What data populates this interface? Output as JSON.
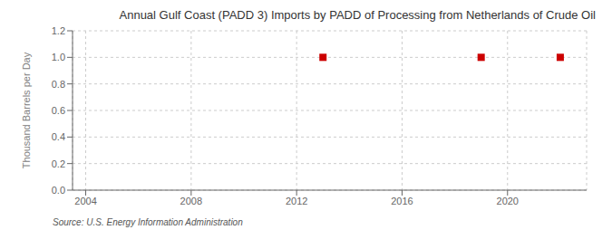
{
  "chart_data": {
    "type": "scatter",
    "title": "Annual Gulf Coast (PADD 3) Imports by PADD of Processing from Netherlands of Crude Oil",
    "y_label": "Thousand Barrels per Day",
    "source": "Source: U.S. Energy Information Administration",
    "x": [
      2013,
      2019,
      2022
    ],
    "values": [
      1.0,
      1.0,
      1.0
    ],
    "color": "#cc0000",
    "marker": "square",
    "xlim": [
      2003.5,
      2023
    ],
    "xticks": [
      2004,
      2008,
      2012,
      2016,
      2020
    ],
    "ylim": [
      0.0,
      1.2
    ],
    "yticks": [
      {
        "value": 0.0,
        "label": "0.0"
      },
      0.2,
      0.4,
      0.6,
      0.8,
      {
        "value": 1.0,
        "label": "1.0"
      },
      1.2
    ],
    "grid": true
  }
}
